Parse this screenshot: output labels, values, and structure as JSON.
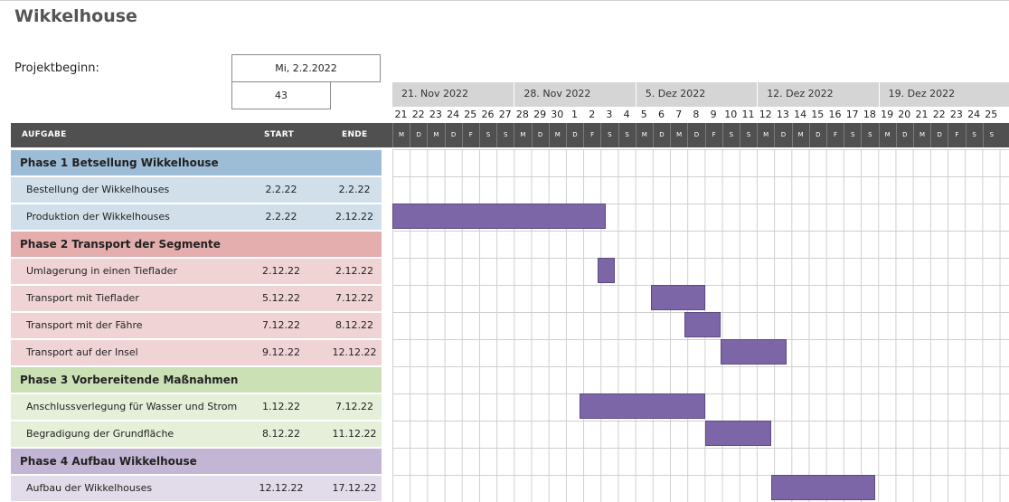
{
  "title": "Wikkelhouse",
  "project": {
    "label": "Projektbeginn:",
    "date": "Mi, 2.2.2022",
    "week": "43"
  },
  "weeks": [
    "21. Nov 2022",
    "28. Nov 2022",
    "5. Dez 2022",
    "12. Dez 2022",
    "19. Dez 2022"
  ],
  "days": [
    "21",
    "22",
    "23",
    "24",
    "25",
    "26",
    "27",
    "28",
    "29",
    "30",
    "1",
    "2",
    "3",
    "4",
    "5",
    "6",
    "7",
    "8",
    "9",
    "10",
    "11",
    "12",
    "13",
    "14",
    "15",
    "16",
    "17",
    "18",
    "19",
    "20",
    "21",
    "22",
    "23",
    "24",
    "25"
  ],
  "day_letters": [
    "M",
    "D",
    "M",
    "D",
    "F",
    "S",
    "S",
    "M",
    "D",
    "M",
    "D",
    "F",
    "S",
    "S",
    "M",
    "D",
    "M",
    "D",
    "F",
    "S",
    "S",
    "M",
    "D",
    "M",
    "D",
    "F",
    "S",
    "S",
    "M",
    "D",
    "M",
    "D",
    "F",
    "S",
    "S"
  ],
  "columns": {
    "task": "AUFGABE",
    "start": "START",
    "end": "ENDE"
  },
  "rows": [
    {
      "type": "phase",
      "phase": 1,
      "label": "Phase 1 Betsellung Wikkelhouse"
    },
    {
      "type": "task",
      "phase": 1,
      "label": "Bestellung der Wikkelhouses",
      "start": "2.2.22",
      "end": "2.2.22"
    },
    {
      "type": "task",
      "phase": 1,
      "label": "Produktion der Wikkelhouses",
      "start": "2.2.22",
      "end": "2.12.22"
    },
    {
      "type": "phase",
      "phase": 2,
      "label": "Phase 2 Transport der Segmente"
    },
    {
      "type": "task",
      "phase": 2,
      "label": "Umlagerung in einen Tieflader",
      "start": "2.12.22",
      "end": "2.12.22"
    },
    {
      "type": "task",
      "phase": 2,
      "label": "Transport mit Tieflader",
      "start": "5.12.22",
      "end": "7.12.22"
    },
    {
      "type": "task",
      "phase": 2,
      "label": "Transport mit der Fähre",
      "start": "7.12.22",
      "end": "8.12.22"
    },
    {
      "type": "task",
      "phase": 2,
      "label": "Transport auf der Insel",
      "start": "9.12.22",
      "end": "12.12.22"
    },
    {
      "type": "phase",
      "phase": 3,
      "label": "Phase 3 Vorbereitende Maßnahmen"
    },
    {
      "type": "task",
      "phase": 3,
      "label": "Anschlussverlegung für Wasser und Strom",
      "start": "1.12.22",
      "end": "7.12.22"
    },
    {
      "type": "task",
      "phase": 3,
      "label": "Begradigung der Grundfläche",
      "start": "8.12.22",
      "end": "11.12.22"
    },
    {
      "type": "phase",
      "phase": 4,
      "label": "Phase 4 Aufbau Wikkelhouse"
    },
    {
      "type": "task",
      "phase": 4,
      "label": "Aufbau der Wikkelhouses",
      "start": "12.12.22",
      "end": "17.12.22"
    }
  ],
  "bars": [
    {
      "row": 2,
      "from_day": 0,
      "to_day": 12.3
    },
    {
      "row": 4,
      "from_day": 11.8,
      "to_day": 12.8
    },
    {
      "row": 5,
      "from_day": 14.9,
      "to_day": 18.0
    },
    {
      "row": 6,
      "from_day": 16.8,
      "to_day": 18.9
    },
    {
      "row": 7,
      "from_day": 18.9,
      "to_day": 22.7
    },
    {
      "row": 9,
      "from_day": 10.8,
      "to_day": 18.0
    },
    {
      "row": 10,
      "from_day": 18.0,
      "to_day": 21.8
    },
    {
      "row": 12,
      "from_day": 21.8,
      "to_day": 27.8
    }
  ],
  "colors": {
    "bar": "#7d66a8",
    "header": "#505050"
  }
}
